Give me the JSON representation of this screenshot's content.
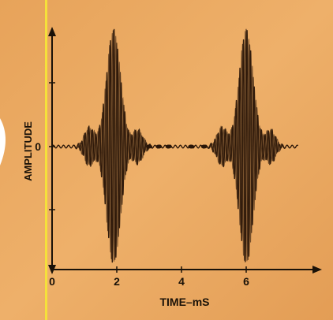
{
  "chart_data": {
    "type": "line",
    "xlabel": "TIME–mS",
    "ylabel": "AMPLITUDE",
    "x_ticks": [
      "0",
      "2",
      "4",
      "6"
    ],
    "x_tick_values": [
      0,
      2,
      4,
      6
    ],
    "y_ticks": [
      "0"
    ],
    "xlim": [
      0,
      8
    ],
    "ylim": [
      -1,
      1
    ],
    "grid": false,
    "colors": {
      "background": "#e8a85c",
      "paper_warm": "#f0b468",
      "trace": "#2a1608",
      "axis": "#1a1208",
      "border_left": "#f5e13a"
    },
    "series": [
      {
        "description_bursts": [
          {
            "center_ms": 1.9,
            "peak_amplitude": 1.0
          },
          {
            "center_ms": 6.0,
            "peak_amplitude": 1.0
          }
        ],
        "carrier_cycles_per_ms": 9
      }
    ]
  }
}
